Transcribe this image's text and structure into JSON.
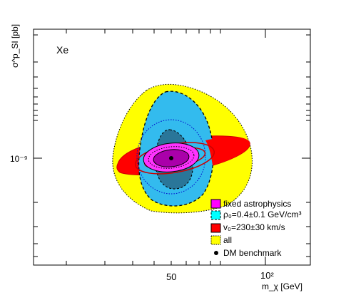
{
  "chart_data": {
    "type": "contour",
    "panel_label": "Xe",
    "xlabel": "m_χ [GeV]",
    "ylabel": "σ^p_SI [pb]",
    "x_scale": "log",
    "y_scale": "log",
    "x_ticks": [
      {
        "value": 50,
        "label": "50"
      },
      {
        "value": 100,
        "label": "10²"
      }
    ],
    "y_ticks": [
      {
        "value": 1e-09,
        "label": "10⁻⁹"
      }
    ],
    "benchmark": {
      "mass_gev": 50,
      "sigma_pb": 1e-09
    },
    "legend": [
      {
        "label": "fixed astrophysics",
        "color": "#ff00ff",
        "style": "solid"
      },
      {
        "label": "ρ₀=0.4±0.1 GeV/cm³",
        "color": "#00ffff",
        "style": "dashed"
      },
      {
        "label": "v₀=230±30 km/s",
        "color": "#ff0000",
        "style": "solid"
      },
      {
        "label": "all",
        "color": "#ffff00",
        "style": "dotted"
      },
      {
        "label": "DM benchmark",
        "color": "#000000",
        "style": "marker"
      }
    ],
    "regions": [
      {
        "name": "all",
        "fill": "#ffff00",
        "stroke": "#000000",
        "line": "dotted"
      },
      {
        "name": "ρ₀=0.4±0.1 GeV/cm³",
        "fill": "#33bbee",
        "inner_fill": "#2a7699",
        "stroke": "#000000",
        "line": "dashed"
      },
      {
        "name": "v₀=230±30 km/s",
        "fill": "#ff0000",
        "stroke": "#cc0000",
        "line": "solid"
      },
      {
        "name": "fixed astrophysics",
        "fill": "#ff33ff",
        "inner_fill": "#aa00aa",
        "stroke": "#000000",
        "line": "solid"
      }
    ]
  }
}
